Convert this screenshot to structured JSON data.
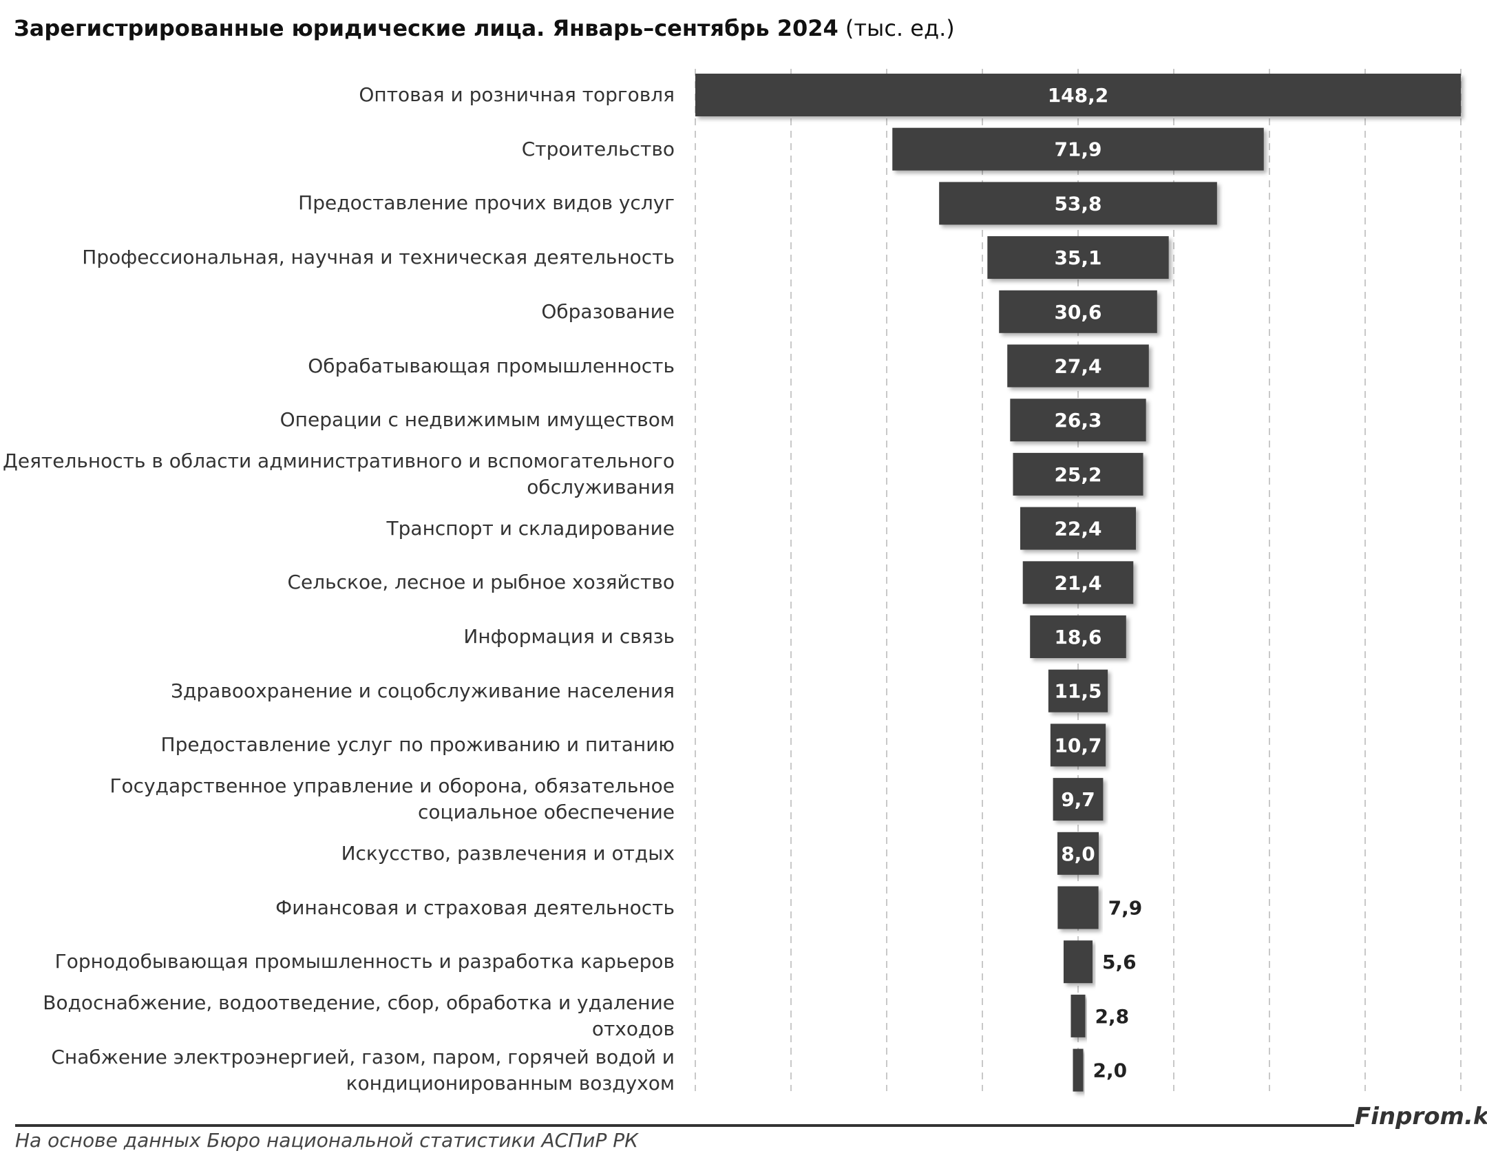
{
  "title": {
    "main": "Зарегистрированные юридические лица. Январь–сентябрь 2024",
    "unit": "(тыс. ед.)"
  },
  "footer": {
    "source": "На основе данных Бюро национальной статистики АСПиР РК",
    "brand": "Finprom.kz"
  },
  "colors": {
    "bar": "#404040",
    "grid": "#c8c8c8",
    "label_inside": "#ffffff",
    "label_outside": "#222222"
  },
  "chart_data": {
    "type": "bar",
    "orientation": "horizontal",
    "layout": "centered",
    "categories": [
      "Оптовая и розничная торговля",
      "Строительство",
      "Предоставление прочих видов услуг",
      "Профессиональная, научная и техническая деятельность",
      "Образование",
      "Обрабатывающая промышленность",
      "Операции с недвижимым имуществом",
      "Деятельность в области административного и вспомогательного обслуживания",
      "Транспорт и складирование",
      "Сельское, лесное и рыбное хозяйство",
      "Информация и связь",
      "Здравоохранение и соцобслуживание населения",
      "Предоставление услуг по проживанию и питанию",
      "Государственное управление и оборона, обязательное социальное обеспечение",
      "Искусство, развлечения и отдых",
      "Финансовая и страховая деятельность",
      "Горнодобывающая промышленность и разработка карьеров",
      "Водоснабжение, водоотведение, сбор, обработка и удаление отходов",
      "Снабжение электроэнергией, газом, паром, горячей водой и кондиционированным воздухом"
    ],
    "values": [
      148.2,
      71.9,
      53.8,
      35.1,
      30.6,
      27.4,
      26.3,
      25.2,
      22.4,
      21.4,
      18.6,
      11.5,
      10.7,
      9.7,
      8.0,
      7.9,
      5.6,
      2.8,
      2.0
    ],
    "value_labels": [
      "148,2",
      "71,9",
      "53,8",
      "35,1",
      "30,6",
      "27,4",
      "26,3",
      "25,2",
      "22,4",
      "21,4",
      "18,6",
      "11,5",
      "10,7",
      "9,7",
      "8,0",
      "7,9",
      "5,6",
      "2,8",
      "2,0"
    ],
    "xlim": [
      0,
      148.2
    ],
    "grid": true,
    "legend": "none"
  }
}
